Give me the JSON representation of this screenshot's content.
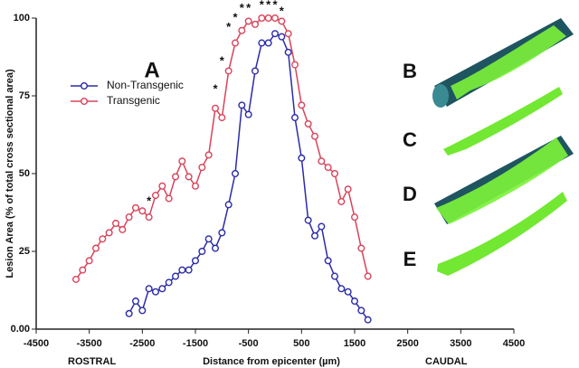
{
  "chart_data": {
    "type": "line",
    "y_label": "Lesion Area (% of total cross sectional area)",
    "x_label": "Distance from epicenter (µm)",
    "left_note": "ROSTRAL",
    "right_note": "CAUDAL",
    "panel_labels": [
      "A",
      "B",
      "C",
      "D",
      "E"
    ],
    "xlim": [
      -4500,
      4500
    ],
    "xticks": [
      -4500,
      -3500,
      -2500,
      -1500,
      -500,
      500,
      1500,
      2500,
      3500,
      4500
    ],
    "ylim": [
      0,
      100
    ],
    "yticks": [
      {
        "value": 0,
        "label": "0.00"
      },
      25,
      50,
      75,
      100
    ],
    "legend": "upper left",
    "series": [
      {
        "name": "Non-Transgenic",
        "color": "#2b2ba8",
        "x": [
          -2750,
          -2625,
          -2500,
          -2375,
          -2250,
          -2125,
          -2000,
          -1875,
          -1750,
          -1625,
          -1500,
          -1375,
          -1250,
          -1125,
          -1000,
          -875,
          -750,
          -625,
          -500,
          -375,
          -250,
          -125,
          0,
          125,
          250,
          375,
          500,
          625,
          750,
          875,
          1000,
          1125,
          1250,
          1375,
          1500,
          1625,
          1750
        ],
        "values": [
          5,
          9,
          6,
          13,
          12,
          13,
          15,
          17,
          19,
          19,
          22,
          25,
          29,
          26,
          31,
          40,
          50,
          72,
          69,
          83,
          92,
          92,
          95,
          94,
          89,
          68,
          55,
          35,
          30,
          33,
          22,
          17,
          13,
          12,
          9,
          6,
          3
        ]
      },
      {
        "name": "Transgenic",
        "color": "#d9435a",
        "x": [
          -3750,
          -3625,
          -3500,
          -3375,
          -3250,
          -3125,
          -3000,
          -2875,
          -2750,
          -2625,
          -2500,
          -2375,
          -2250,
          -2125,
          -2000,
          -1875,
          -1750,
          -1625,
          -1500,
          -1375,
          -1250,
          -1125,
          -1000,
          -875,
          -750,
          -625,
          -500,
          -375,
          -250,
          -125,
          0,
          125,
          250,
          375,
          500,
          625,
          750,
          875,
          1000,
          1125,
          1250,
          1375,
          1500,
          1625,
          1750
        ],
        "values": [
          16,
          19,
          22,
          26,
          29,
          31,
          34,
          32,
          36,
          39,
          38,
          36,
          43,
          46,
          42,
          49,
          54,
          49,
          46,
          52,
          56,
          71,
          68,
          83,
          92,
          96,
          99,
          98,
          100,
          100,
          100,
          99,
          95,
          85,
          72,
          66,
          62,
          54,
          52,
          50,
          41,
          45,
          36,
          26,
          17
        ]
      }
    ],
    "annotations": [
      {
        "text": "*",
        "x": -2375,
        "y": 41
      },
      {
        "text": "*",
        "x": -1125,
        "y": 77
      },
      {
        "text": "*",
        "x": -1000,
        "y": 86
      },
      {
        "text": "*",
        "x": -875,
        "y": 97
      },
      {
        "text": "*",
        "x": -750,
        "y": 100
      },
      {
        "text": "*",
        "x": -625,
        "y": 103
      },
      {
        "text": "*",
        "x": -500,
        "y": 103
      },
      {
        "text": "*",
        "x": -250,
        "y": 104
      },
      {
        "text": "*",
        "x": -125,
        "y": 104
      },
      {
        "text": "*",
        "x": 0,
        "y": 104
      },
      {
        "text": "*",
        "x": 125,
        "y": 102
      }
    ]
  }
}
